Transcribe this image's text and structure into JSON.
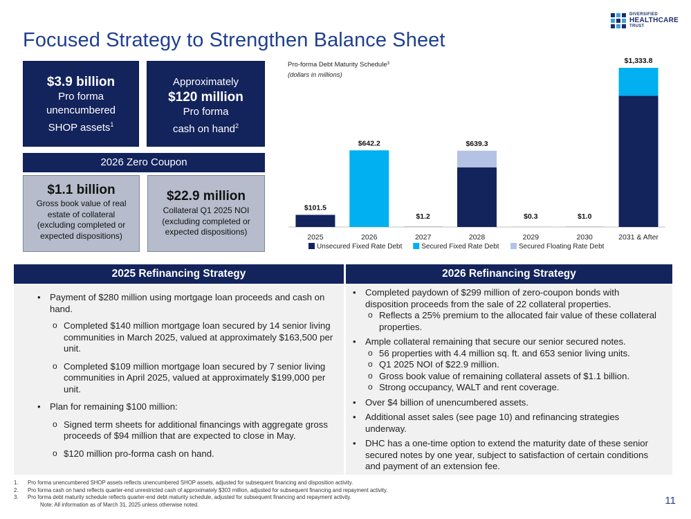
{
  "title": "Focused Strategy to Strengthen Balance Sheet",
  "logo": {
    "line1": "DIVERSIFIED",
    "line2": "HEALTHCARE",
    "line3": "TRUST"
  },
  "box_shop": {
    "amount": "$3.9 billion",
    "l1": "Pro forma",
    "l2": "unencumbered",
    "l3": "SHOP assets",
    "sup": "1"
  },
  "box_cash": {
    "l1": "Approximately",
    "amount": "$120 million",
    "l2": "Pro forma",
    "l3": "cash on hand",
    "sup": "2"
  },
  "zero_coupon_label": "2026 Zero Coupon",
  "box_gross": {
    "amount": "$1.1 billion",
    "l1": "Gross book value of real",
    "l2": "estate of collateral",
    "l3": "(excluding completed or",
    "l4": "expected dispositions)"
  },
  "box_noi": {
    "amount": "$22.9 million",
    "l1": "Collateral Q1 2025 NOI",
    "l2": "(excluding completed or",
    "l3": "expected dispositions)"
  },
  "chart_data": {
    "type": "bar",
    "stacked": true,
    "title": "Pro-forma Debt Maturity Schedule",
    "title_sup": "3",
    "subtitle": "(dollars in millions)",
    "categories": [
      "2025",
      "2026",
      "2027",
      "2028",
      "2029",
      "2030",
      "2031 & After"
    ],
    "series": [
      {
        "name": "Unsecured Fixed Rate Debt",
        "color": "#13235c",
        "values": [
          101.5,
          0,
          1.2,
          500.0,
          0.3,
          1.0,
          1100.0
        ]
      },
      {
        "name": "Secured Fixed Rate Debt",
        "color": "#00b0f0",
        "values": [
          0,
          642.2,
          0,
          0,
          0,
          0,
          233.8
        ]
      },
      {
        "name": "Secured Floating Rate Debt",
        "color": "#b4c3e4",
        "values": [
          0,
          0,
          0,
          139.3,
          0,
          0,
          0
        ]
      }
    ],
    "totals_labels": [
      "$101.5",
      "$642.2",
      "$1.2",
      "$639.3",
      "$0.3",
      "$1.0",
      "$1,333.8"
    ],
    "ylim": [
      0,
      1333.8
    ]
  },
  "refi2025": {
    "header": "2025 Refinancing Strategy",
    "b1": "Payment of $280 million using mortgage loan proceeds and cash on hand.",
    "s1": "Completed $140 million mortgage loan secured by 14 senior living communities in March 2025, valued at approximately $163,500 per unit.",
    "s2": "Completed $109 million mortgage loan secured by 7 senior living communities in April 2025, valued at approximately $199,000 per unit.",
    "b2": "Plan for remaining $100 million:",
    "s3": "Signed term sheets for additional financings with aggregate gross proceeds of $94 million that are expected to close in May.",
    "s4": "$120 million pro-forma cash on hand."
  },
  "refi2026": {
    "header": "2026 Refinancing Strategy",
    "b1": "Completed paydown of $299 million of zero-coupon bonds with disposition proceeds from the sale of 22 collateral properties.",
    "s1": "Reflects a 25% premium to the allocated fair value of these collateral properties.",
    "b2": "Ample collateral remaining that secure our senior secured notes.",
    "s2": "56 properties with 4.4 million sq. ft. and 653 senior living units.",
    "s3": "Q1 2025 NOI of $22.9 million.",
    "s4": "Gross book value of remaining collateral assets of $1.1 billion.",
    "s5": "Strong occupancy, WALT and rent coverage.",
    "b3": "Over $4 billion of unencumbered assets.",
    "b4": "Additional asset sales (see page 10) and refinancing strategies underway.",
    "b5": "DHC has a one-time option to extend the maturity date of these senior secured notes by one year, subject to satisfaction of certain conditions and payment of an extension fee."
  },
  "footnotes": {
    "n1": "1.",
    "f1": "Pro forma unencumbered SHOP assets reflects unencumbered SHOP assets, adjusted for subsequent financing and disposition activity.",
    "n2": "2.",
    "f2": "Pro forma cash on hand reflects quarter-end unrestricted cash of approximately $303 million, adjusted for subsequent financing and repayment activity.",
    "n3": "3.",
    "f3": "Pro forma debt maturity schedule reflects quarter-end debt maturity schedule, adjusted for subsequent financing and repayment activity.",
    "note": "Note: All information as of March 31, 2025 unless otherwise noted."
  },
  "page_number": "11"
}
